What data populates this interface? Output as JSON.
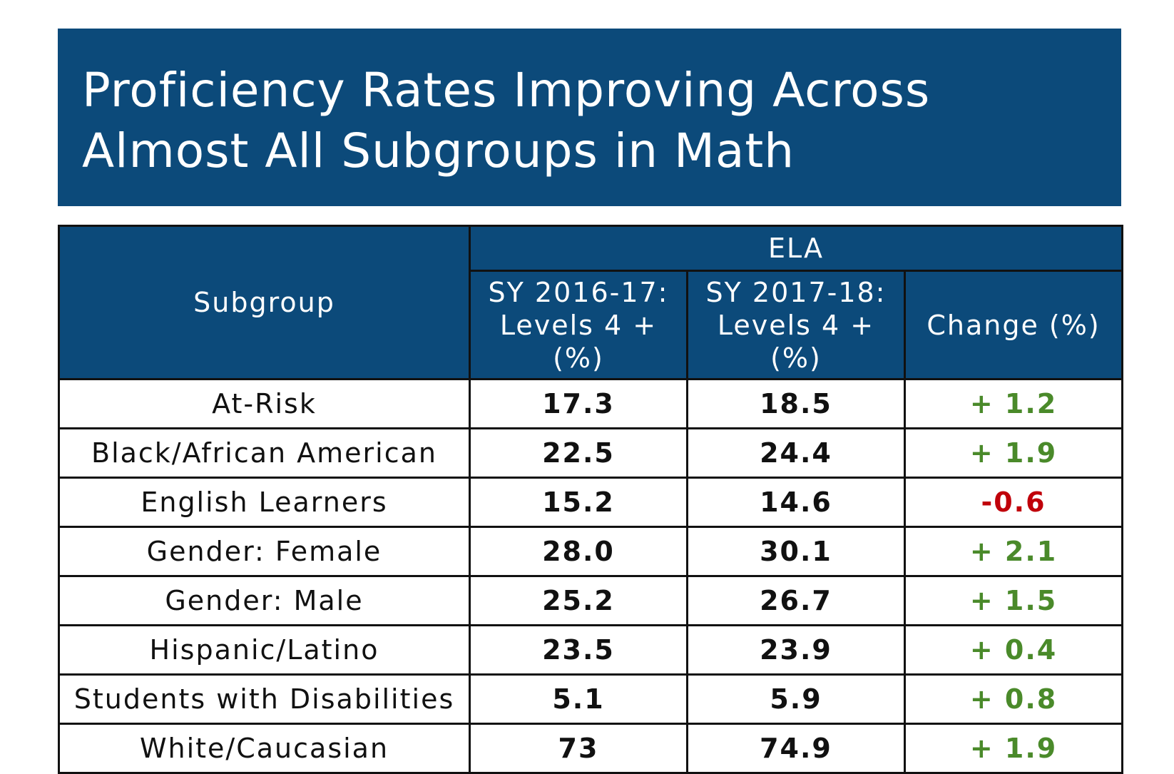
{
  "title": {
    "line1": "Proficiency Rates Improving Across",
    "line2": "Almost All Subgroups in Math"
  },
  "table": {
    "subgroup_header": "Subgroup",
    "group_header": "ELA",
    "col1_header": [
      "SY 2016-17:",
      "Levels 4 +",
      "(%)"
    ],
    "col2_header": [
      "SY 2017-18:",
      "Levels 4 +",
      "(%)"
    ],
    "col3_header": "Change (%)",
    "rows": [
      {
        "subgroup": "At-Risk",
        "sy2016_17": "17.3",
        "sy2017_18": "18.5",
        "change": "+ 1.2"
      },
      {
        "subgroup": "Black/African American",
        "sy2016_17": "22.5",
        "sy2017_18": "24.4",
        "change": "+ 1.9"
      },
      {
        "subgroup": "English Learners",
        "sy2016_17": "15.2",
        "sy2017_18": "14.6",
        "change": "-0.6"
      },
      {
        "subgroup": "Gender: Female",
        "sy2016_17": "28.0",
        "sy2017_18": "30.1",
        "change": "+ 2.1"
      },
      {
        "subgroup": "Gender: Male",
        "sy2016_17": "25.2",
        "sy2017_18": "26.7",
        "change": "+ 1.5"
      },
      {
        "subgroup": "Hispanic/Latino",
        "sy2016_17": "23.5",
        "sy2017_18": "23.9",
        "change": "+ 0.4"
      },
      {
        "subgroup": "Students with Disabilities",
        "sy2016_17": "5.1",
        "sy2017_18": "5.9",
        "change": "+ 0.8"
      },
      {
        "subgroup": "White/Caucasian",
        "sy2016_17": "73",
        "sy2017_18": "74.9",
        "change": "+ 1.9"
      }
    ]
  },
  "colors": {
    "header_bg": "#0c4a7a",
    "header_text": "#ffffff",
    "positive_change": "#4a8a2a",
    "negative_change": "#c0000a",
    "body_text": "#111111"
  }
}
